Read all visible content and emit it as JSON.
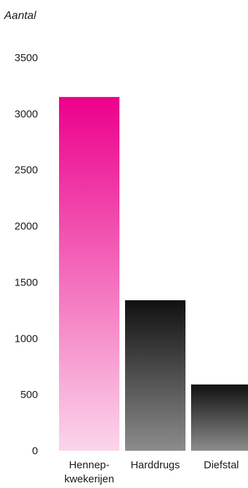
{
  "chart_data": {
    "type": "bar",
    "ylabel": "Aantal",
    "xlabel": "",
    "title": "",
    "ylim": [
      0,
      3500
    ],
    "yticks": [
      0,
      500,
      1000,
      1500,
      2000,
      2500,
      3000,
      3500
    ],
    "ytick_labels": [
      "0",
      "500",
      "1000",
      "1500",
      "2000",
      "2500",
      "3000",
      "3500"
    ],
    "grid": false,
    "categories": [
      {
        "lines": [
          "Hennep-",
          "kwekerijen"
        ]
      },
      {
        "lines": [
          "Harddrugs"
        ]
      },
      {
        "lines": [
          "Diefstal"
        ]
      }
    ],
    "values": [
      3150,
      1340,
      590
    ],
    "fills": [
      {
        "top": "#ec008c",
        "bottom": "#fbd6ea"
      },
      {
        "top": "#111111",
        "bottom": "#8c8c8c"
      },
      {
        "top": "#111111",
        "bottom": "#8c8c8c"
      }
    ]
  }
}
